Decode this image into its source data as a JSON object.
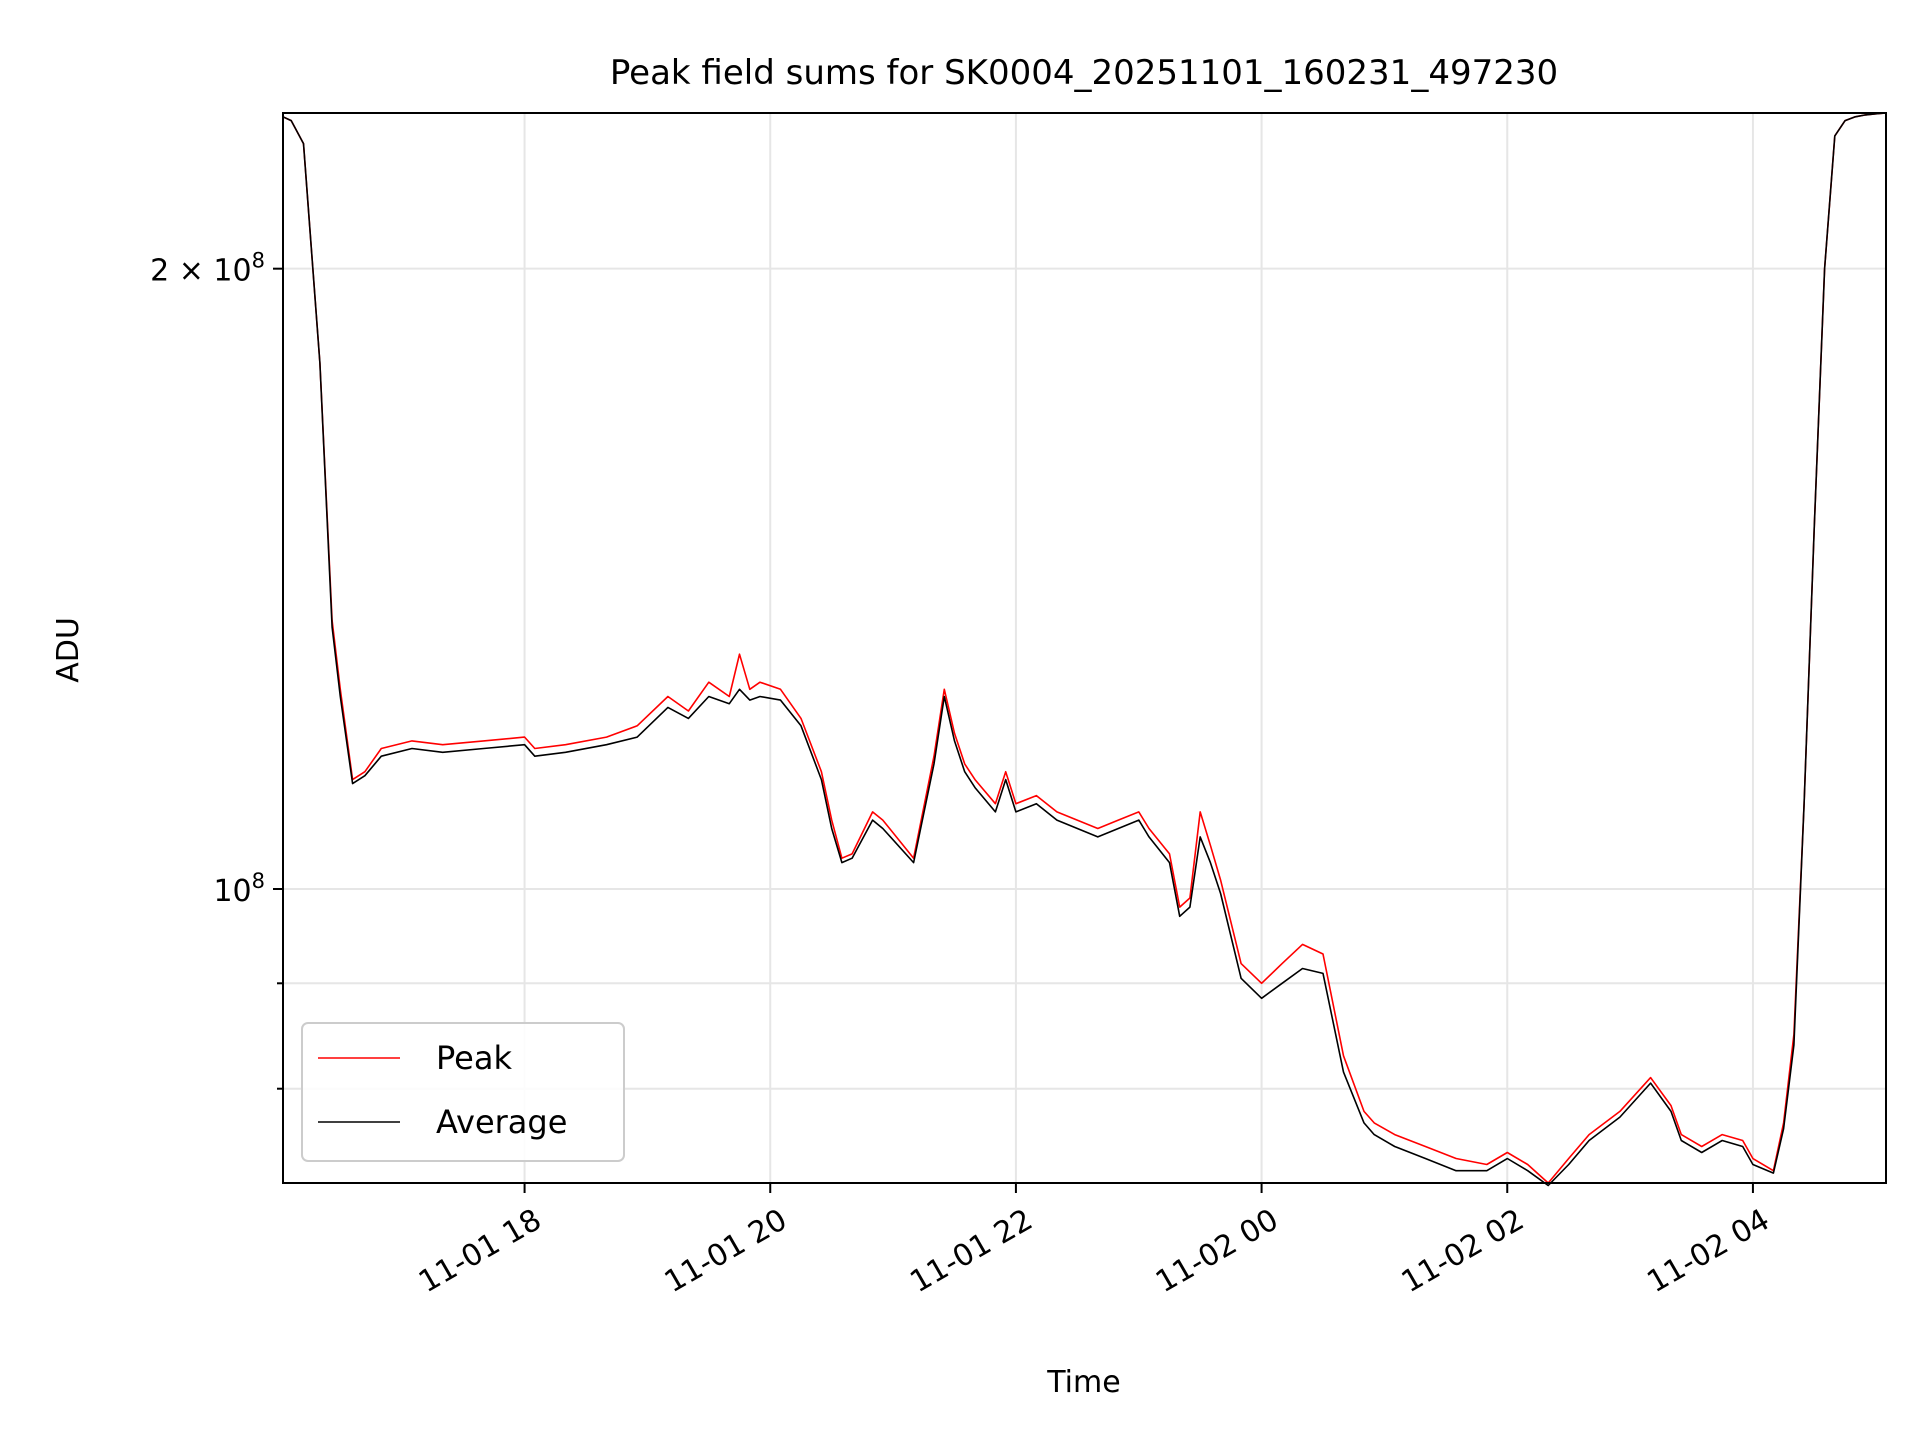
{
  "chart_data": {
    "type": "line",
    "title": "Peak field sums for SK0004_20251101_160231_497230",
    "xlabel": "Time",
    "ylabel": "ADU",
    "y_scale": "log",
    "xlim": [
      "2025-11-01 16:02",
      "2025-11-02 05:05"
    ],
    "ylim": [
      72000000,
      238000000
    ],
    "grid": true,
    "legend_position": "lower-left",
    "x_ticks": [
      {
        "value": "2025-11-01 18:00",
        "label": "11-01 18"
      },
      {
        "value": "2025-11-01 20:00",
        "label": "11-01 20"
      },
      {
        "value": "2025-11-01 22:00",
        "label": "11-01 22"
      },
      {
        "value": "2025-11-02 00:00",
        "label": "11-02 00"
      },
      {
        "value": "2025-11-02 02:00",
        "label": "11-02 02"
      },
      {
        "value": "2025-11-02 04:00",
        "label": "11-02 04"
      }
    ],
    "y_ticks": [
      {
        "value": 100000000,
        "base": "10",
        "exp": "8",
        "mantissa": ""
      },
      {
        "value": 200000000,
        "base": "10",
        "exp": "8",
        "mantissa": "2 × "
      }
    ],
    "y_minor_ticks": [
      80000000,
      90000000
    ],
    "series": [
      {
        "name": "Peak",
        "color": "#ff0000",
        "x": [
          "2025-11-01 16:02",
          "2025-11-01 16:06",
          "2025-11-01 16:12",
          "2025-11-01 16:20",
          "2025-11-01 16:26",
          "2025-11-01 16:30",
          "2025-11-01 16:36",
          "2025-11-01 16:42",
          "2025-11-01 16:50",
          "2025-11-01 17:05",
          "2025-11-01 17:20",
          "2025-11-01 17:40",
          "2025-11-01 18:00",
          "2025-11-01 18:05",
          "2025-11-01 18:20",
          "2025-11-01 18:40",
          "2025-11-01 18:55",
          "2025-11-01 19:10",
          "2025-11-01 19:20",
          "2025-11-01 19:30",
          "2025-11-01 19:40",
          "2025-11-01 19:45",
          "2025-11-01 19:50",
          "2025-11-01 19:55",
          "2025-11-01 20:05",
          "2025-11-01 20:15",
          "2025-11-01 20:25",
          "2025-11-01 20:30",
          "2025-11-01 20:35",
          "2025-11-01 20:40",
          "2025-11-01 20:50",
          "2025-11-01 20:55",
          "2025-11-01 21:10",
          "2025-11-01 21:20",
          "2025-11-01 21:25",
          "2025-11-01 21:30",
          "2025-11-01 21:35",
          "2025-11-01 21:40",
          "2025-11-01 21:50",
          "2025-11-01 21:55",
          "2025-11-01 22:00",
          "2025-11-01 22:10",
          "2025-11-01 22:20",
          "2025-11-01 22:40",
          "2025-11-01 22:50",
          "2025-11-01 23:00",
          "2025-11-01 23:05",
          "2025-11-01 23:15",
          "2025-11-01 23:20",
          "2025-11-01 23:25",
          "2025-11-01 23:30",
          "2025-11-01 23:35",
          "2025-11-01 23:40",
          "2025-11-01 23:50",
          "2025-11-02 00:00",
          "2025-11-02 00:10",
          "2025-11-02 00:20",
          "2025-11-02 00:30",
          "2025-11-02 00:40",
          "2025-11-02 00:50",
          "2025-11-02 00:55",
          "2025-11-02 01:05",
          "2025-11-02 01:20",
          "2025-11-02 01:35",
          "2025-11-02 01:50",
          "2025-11-02 02:00",
          "2025-11-02 02:10",
          "2025-11-02 02:20",
          "2025-11-02 02:30",
          "2025-11-02 02:40",
          "2025-11-02 02:55",
          "2025-11-02 03:10",
          "2025-11-02 03:20",
          "2025-11-02 03:25",
          "2025-11-02 03:35",
          "2025-11-02 03:45",
          "2025-11-02 03:55",
          "2025-11-02 04:00",
          "2025-11-02 04:10",
          "2025-11-02 04:15",
          "2025-11-02 04:20",
          "2025-11-02 04:25",
          "2025-11-02 04:30",
          "2025-11-02 04:35",
          "2025-11-02 04:40",
          "2025-11-02 04:45",
          "2025-11-02 04:50",
          "2025-11-02 04:55",
          "2025-11-02 05:00",
          "2025-11-02 05:05"
        ],
        "y": [
          237000000,
          236000000,
          230000000,
          180000000,
          135000000,
          125000000,
          113000000,
          114000000,
          117000000,
          118000000,
          117500000,
          118000000,
          118500000,
          117000000,
          117500000,
          118500000,
          120000000,
          124000000,
          122000000,
          126000000,
          124000000,
          130000000,
          125000000,
          126000000,
          125000000,
          121000000,
          114000000,
          108000000,
          103500000,
          104000000,
          109000000,
          108000000,
          103500000,
          116000000,
          125000000,
          119000000,
          115000000,
          113000000,
          110000000,
          114000000,
          110000000,
          111000000,
          109000000,
          107000000,
          108000000,
          109000000,
          107000000,
          104000000,
          98000000,
          99000000,
          109000000,
          105000000,
          101000000,
          92000000,
          90000000,
          92000000,
          94000000,
          93000000,
          83000000,
          78000000,
          77000000,
          76000000,
          75000000,
          74000000,
          73500000,
          74500000,
          73500000,
          72000000,
          74000000,
          76000000,
          78000000,
          81000000,
          78500000,
          76000000,
          75000000,
          76000000,
          75500000,
          74000000,
          73000000,
          77000000,
          85000000,
          110000000,
          150000000,
          200000000,
          232000000,
          236000000,
          237000000,
          237500000,
          237800000,
          238000000
        ]
      },
      {
        "name": "Average",
        "color": "#000000",
        "x": [
          "2025-11-01 16:02",
          "2025-11-01 16:06",
          "2025-11-01 16:12",
          "2025-11-01 16:20",
          "2025-11-01 16:26",
          "2025-11-01 16:30",
          "2025-11-01 16:36",
          "2025-11-01 16:42",
          "2025-11-01 16:50",
          "2025-11-01 17:05",
          "2025-11-01 17:20",
          "2025-11-01 17:40",
          "2025-11-01 18:00",
          "2025-11-01 18:05",
          "2025-11-01 18:20",
          "2025-11-01 18:40",
          "2025-11-01 18:55",
          "2025-11-01 19:10",
          "2025-11-01 19:20",
          "2025-11-01 19:30",
          "2025-11-01 19:40",
          "2025-11-01 19:45",
          "2025-11-01 19:50",
          "2025-11-01 19:55",
          "2025-11-01 20:05",
          "2025-11-01 20:15",
          "2025-11-01 20:25",
          "2025-11-01 20:30",
          "2025-11-01 20:35",
          "2025-11-01 20:40",
          "2025-11-01 20:50",
          "2025-11-01 20:55",
          "2025-11-01 21:10",
          "2025-11-01 21:20",
          "2025-11-01 21:25",
          "2025-11-01 21:30",
          "2025-11-01 21:35",
          "2025-11-01 21:40",
          "2025-11-01 21:50",
          "2025-11-01 21:55",
          "2025-11-01 22:00",
          "2025-11-01 22:10",
          "2025-11-01 22:20",
          "2025-11-01 22:40",
          "2025-11-01 22:50",
          "2025-11-01 23:00",
          "2025-11-01 23:05",
          "2025-11-01 23:15",
          "2025-11-01 23:20",
          "2025-11-01 23:25",
          "2025-11-01 23:30",
          "2025-11-01 23:35",
          "2025-11-01 23:40",
          "2025-11-01 23:50",
          "2025-11-02 00:00",
          "2025-11-02 00:10",
          "2025-11-02 00:20",
          "2025-11-02 00:30",
          "2025-11-02 00:40",
          "2025-11-02 00:50",
          "2025-11-02 00:55",
          "2025-11-02 01:05",
          "2025-11-02 01:20",
          "2025-11-02 01:35",
          "2025-11-02 01:50",
          "2025-11-02 02:00",
          "2025-11-02 02:10",
          "2025-11-02 02:20",
          "2025-11-02 02:30",
          "2025-11-02 02:40",
          "2025-11-02 02:55",
          "2025-11-02 03:10",
          "2025-11-02 03:20",
          "2025-11-02 03:25",
          "2025-11-02 03:35",
          "2025-11-02 03:45",
          "2025-11-02 03:55",
          "2025-11-02 04:00",
          "2025-11-02 04:10",
          "2025-11-02 04:15",
          "2025-11-02 04:20",
          "2025-11-02 04:25",
          "2025-11-02 04:30",
          "2025-11-02 04:35",
          "2025-11-02 04:40",
          "2025-11-02 04:45",
          "2025-11-02 04:50",
          "2025-11-02 04:55",
          "2025-11-02 05:00",
          "2025-11-02 05:05"
        ],
        "y": [
          237000000,
          236000000,
          230000000,
          180000000,
          134000000,
          124000000,
          112500000,
          113500000,
          116000000,
          117000000,
          116500000,
          117000000,
          117500000,
          116000000,
          116500000,
          117500000,
          118500000,
          122500000,
          121000000,
          124000000,
          123000000,
          125000000,
          123500000,
          124000000,
          123500000,
          120000000,
          113000000,
          107000000,
          103000000,
          103500000,
          108000000,
          107000000,
          103000000,
          115000000,
          124000000,
          118000000,
          114000000,
          112000000,
          109000000,
          113000000,
          109000000,
          110000000,
          108000000,
          106000000,
          107000000,
          108000000,
          106000000,
          103000000,
          97000000,
          98000000,
          106000000,
          103000000,
          99500000,
          90500000,
          88500000,
          90000000,
          91500000,
          91000000,
          81500000,
          77000000,
          76000000,
          75000000,
          74000000,
          73000000,
          73000000,
          74000000,
          73000000,
          71800000,
          73500000,
          75500000,
          77500000,
          80500000,
          78000000,
          75500000,
          74500000,
          75500000,
          75000000,
          73500000,
          72800000,
          76500000,
          84000000,
          110000000,
          150000000,
          200000000,
          232000000,
          236000000,
          237000000,
          237500000,
          237800000,
          238000000
        ]
      }
    ]
  }
}
